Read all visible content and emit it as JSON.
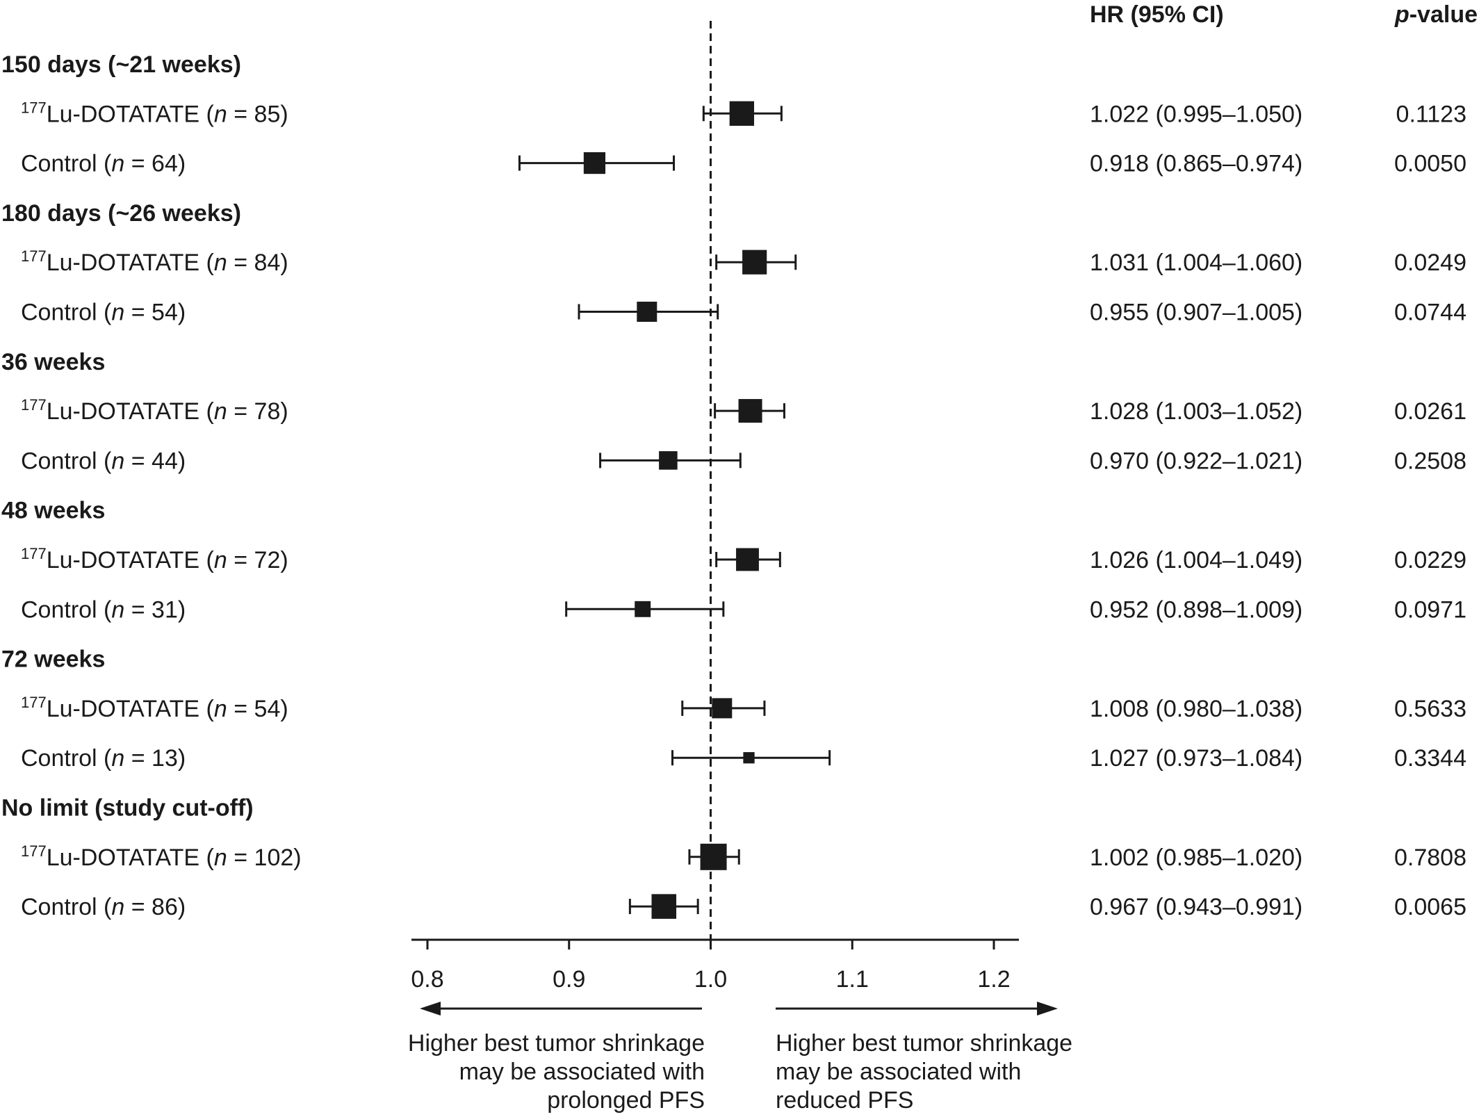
{
  "chart_data": {
    "type": "forest",
    "columns": {
      "hr": "HR (95% CI)",
      "p_italic": "p",
      "p_rest": "-value"
    },
    "reference_line": 1.0,
    "axis": {
      "ticks": [
        0.8,
        0.9,
        1.0,
        1.1,
        1.2
      ],
      "tick_labels": [
        "0.8",
        "0.9",
        "1.0",
        "1.1",
        "1.2"
      ],
      "xlim": [
        0.792,
        1.216
      ]
    },
    "arrows": {
      "left_text": [
        "Higher best tumor shrinkage",
        "may be associated with",
        "prolonged PFS"
      ],
      "right_text": [
        "Higher best tumor shrinkage",
        "may be associated with",
        "reduced PFS"
      ]
    },
    "groups": [
      {
        "title": "150 days (~21 weeks)",
        "rows": [
          {
            "sup": "177",
            "name": "Lu-DOTATATE (",
            "n_label": "n",
            "n_rest": " = 85)",
            "hr": 1.022,
            "lo": 0.995,
            "hi": 1.05,
            "hr_text": "1.022 (0.995–1.050)",
            "p": "0.1123"
          },
          {
            "sup": "",
            "name": "Control (",
            "n_label": "n",
            "n_rest": " = 64)",
            "hr": 0.918,
            "lo": 0.865,
            "hi": 0.974,
            "hr_text": "0.918 (0.865–0.974)",
            "p": "0.0050"
          }
        ]
      },
      {
        "title": "180 days (~26 weeks)",
        "rows": [
          {
            "sup": "177",
            "name": "Lu-DOTATATE (",
            "n_label": "n",
            "n_rest": " = 84)",
            "hr": 1.031,
            "lo": 1.004,
            "hi": 1.06,
            "hr_text": "1.031 (1.004–1.060)",
            "p": "0.0249"
          },
          {
            "sup": "",
            "name": "Control (",
            "n_label": "n",
            "n_rest": " = 54)",
            "hr": 0.955,
            "lo": 0.907,
            "hi": 1.005,
            "hr_text": "0.955 (0.907–1.005)",
            "p": "0.0744"
          }
        ]
      },
      {
        "title": "36 weeks",
        "rows": [
          {
            "sup": "177",
            "name": "Lu-DOTATATE (",
            "n_label": "n",
            "n_rest": " = 78)",
            "hr": 1.028,
            "lo": 1.003,
            "hi": 1.052,
            "hr_text": "1.028 (1.003–1.052)",
            "p": "0.0261"
          },
          {
            "sup": "",
            "name": "Control (",
            "n_label": "n",
            "n_rest": " = 44)",
            "hr": 0.97,
            "lo": 0.922,
            "hi": 1.021,
            "hr_text": "0.970 (0.922–1.021)",
            "p": "0.2508"
          }
        ]
      },
      {
        "title": "48 weeks",
        "rows": [
          {
            "sup": "177",
            "name": "Lu-DOTATATE (",
            "n_label": "n",
            "n_rest": " = 72)",
            "hr": 1.026,
            "lo": 1.004,
            "hi": 1.049,
            "hr_text": "1.026 (1.004–1.049)",
            "p": "0.0229"
          },
          {
            "sup": "",
            "name": "Control (",
            "n_label": "n",
            "n_rest": " = 31)",
            "hr": 0.952,
            "lo": 0.898,
            "hi": 1.009,
            "hr_text": "0.952 (0.898–1.009)",
            "p": "0.0971"
          }
        ]
      },
      {
        "title": "72 weeks",
        "rows": [
          {
            "sup": "177",
            "name": "Lu-DOTATATE (",
            "n_label": "n",
            "n_rest": " = 54)",
            "hr": 1.008,
            "lo": 0.98,
            "hi": 1.038,
            "hr_text": "1.008 (0.980–1.038)",
            "p": "0.5633"
          },
          {
            "sup": "",
            "name": "Control (",
            "n_label": "n",
            "n_rest": " = 13)",
            "hr": 1.027,
            "lo": 0.973,
            "hi": 1.084,
            "hr_text": "1.027 (0.973–1.084)",
            "p": "0.3344"
          }
        ]
      },
      {
        "title": "No limit (study cut-off)",
        "rows": [
          {
            "sup": "177",
            "name": "Lu-DOTATATE (",
            "n_label": "n",
            "n_rest": " = 102)",
            "hr": 1.002,
            "lo": 0.985,
            "hi": 1.02,
            "hr_text": "1.002 (0.985–1.020)",
            "p": "0.7808"
          },
          {
            "sup": "",
            "name": "Control (",
            "n_label": "n",
            "n_rest": " = 86)",
            "hr": 0.967,
            "lo": 0.943,
            "hi": 0.991,
            "hr_text": "0.967 (0.943–0.991)",
            "p": "0.0065"
          }
        ]
      }
    ]
  }
}
